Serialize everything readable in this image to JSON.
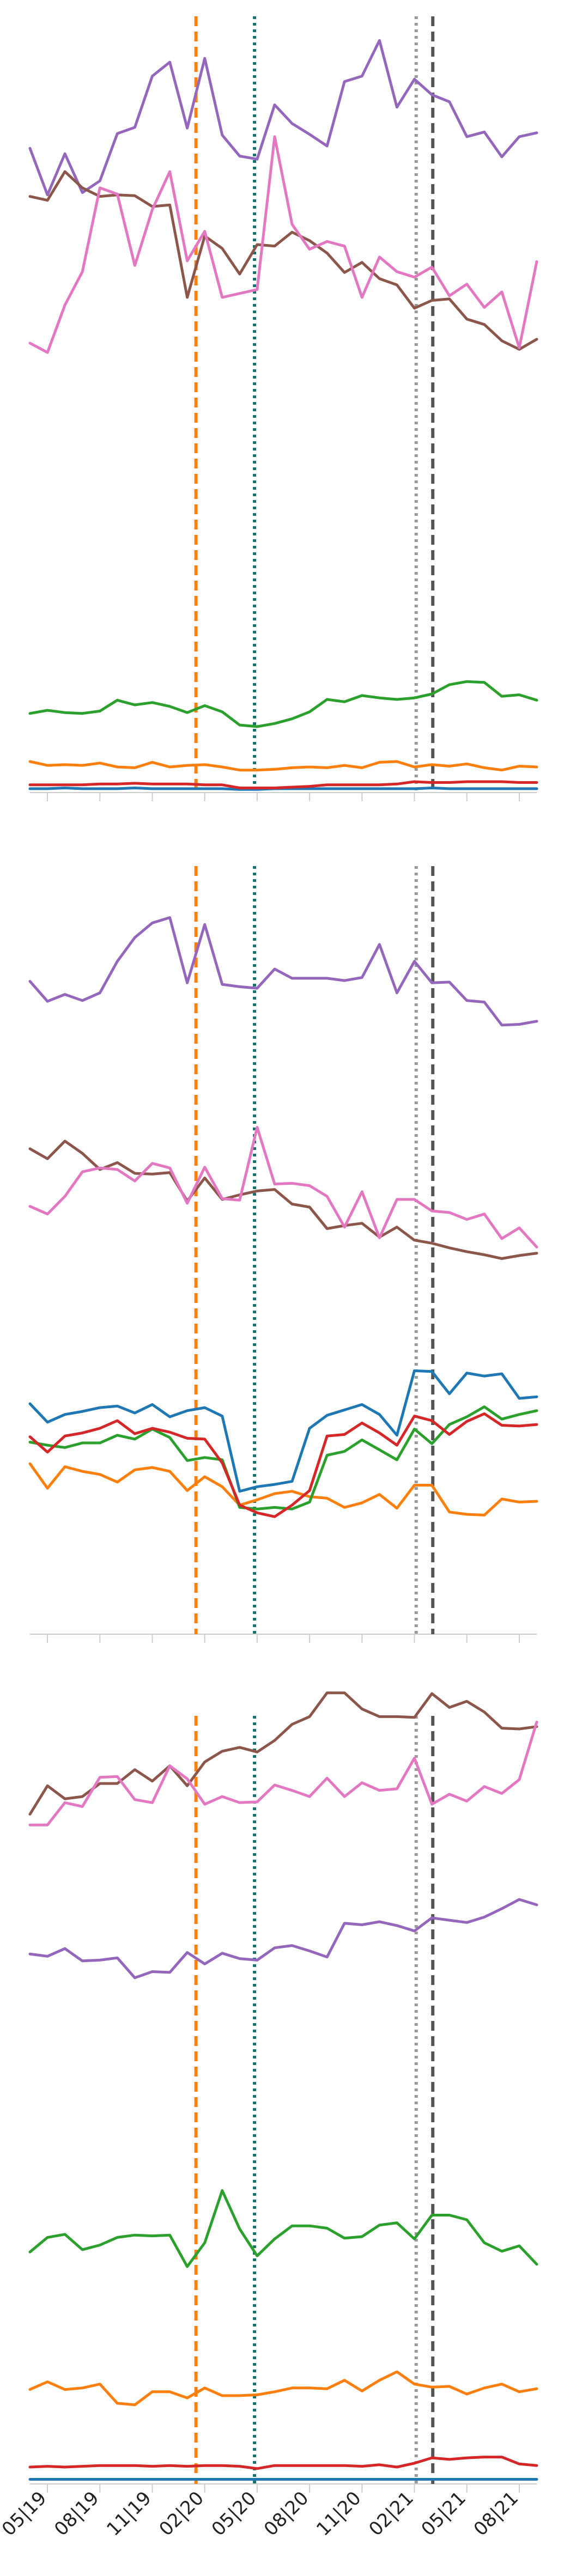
{
  "chart_data": {
    "type": "line",
    "x": [
      "04|19",
      "05|19",
      "06|19",
      "07|19",
      "08|19",
      "09|19",
      "10|19",
      "11|19",
      "12|19",
      "01|20",
      "02|20",
      "03|20",
      "04|20",
      "05|20",
      "06|20",
      "07|20",
      "08|20",
      "09|20",
      "10|20",
      "11|20",
      "12|20",
      "01|21",
      "02|21",
      "03|21",
      "04|21",
      "05|21",
      "06|21",
      "07|21",
      "08|21",
      "09|21"
    ],
    "x_tick_labels": [
      "05|19",
      "08|19",
      "11|19",
      "02|20",
      "05|20",
      "08|20",
      "11|20",
      "02|21",
      "05|21",
      "08|21"
    ],
    "vertical_lines": [
      {
        "x": 9.5,
        "color": "#ff7f0e",
        "style": "dashed"
      },
      {
        "x": 12.85,
        "color": "#17706b",
        "style": "dotted"
      },
      {
        "x": 22.1,
        "color": "#999999",
        "style": "dotted"
      },
      {
        "x": 23.05,
        "color": "#555555",
        "style": "dashed"
      }
    ],
    "panels": [
      {
        "ylim": [
          0,
          100
        ],
        "series": [
          {
            "color": "#1f77b4",
            "values": [
              0.5,
              0.5,
              0.6,
              0.5,
              0.5,
              0.5,
              0.6,
              0.5,
              0.5,
              0.5,
              0.5,
              0.5,
              0.4,
              0.4,
              0.5,
              0.5,
              0.5,
              0.5,
              0.5,
              0.5,
              0.5,
              0.5,
              0.5,
              0.6,
              0.5,
              0.5,
              0.5,
              0.5,
              0.5,
              0.5
            ]
          },
          {
            "color": "#ff7f0e",
            "values": [
              4.0,
              3.5,
              3.6,
              3.5,
              3.8,
              3.3,
              3.2,
              3.9,
              3.3,
              3.5,
              3.6,
              3.3,
              2.9,
              2.9,
              3.0,
              3.2,
              3.3,
              3.2,
              3.5,
              3.2,
              3.9,
              4.0,
              3.3,
              3.6,
              3.4,
              3.7,
              3.2,
              2.9,
              3.4,
              3.3
            ]
          },
          {
            "color": "#2ca02c",
            "values": [
              10.2,
              10.6,
              10.3,
              10.2,
              10.5,
              11.9,
              11.3,
              11.6,
              11.1,
              10.3,
              11.2,
              10.4,
              8.7,
              8.5,
              8.9,
              9.5,
              10.4,
              12.0,
              11.7,
              12.5,
              12.2,
              12.0,
              12.2,
              12.7,
              13.9,
              14.3,
              14.2,
              12.4,
              12.6,
              11.9
            ]
          },
          {
            "color": "#d62728",
            "values": [
              1.0,
              1.0,
              1.0,
              1.0,
              1.1,
              1.1,
              1.2,
              1.1,
              1.1,
              1.1,
              1.0,
              1.0,
              0.6,
              0.6,
              0.6,
              0.7,
              0.8,
              1.0,
              1.0,
              1.0,
              1.0,
              1.1,
              1.4,
              1.3,
              1.3,
              1.4,
              1.4,
              1.4,
              1.3,
              1.3
            ]
          },
          {
            "color": "#9467bd",
            "values": [
              83.0,
              77.0,
              82.3,
              77.3,
              78.8,
              84.9,
              85.7,
              92.3,
              94.1,
              85.6,
              94.6,
              84.7,
              82.0,
              81.6,
              88.6,
              86.2,
              84.8,
              83.3,
              91.6,
              92.3,
              96.9,
              88.3,
              91.9,
              89.9,
              89.0,
              84.5,
              85.1,
              81.9,
              84.5,
              85.0
            ]
          },
          {
            "color": "#8c564b",
            "values": [
              76.8,
              76.3,
              80.0,
              77.9,
              76.8,
              77.0,
              76.9,
              75.5,
              75.7,
              63.8,
              71.7,
              70.1,
              66.8,
              70.6,
              70.4,
              72.2,
              71.1,
              69.5,
              67.0,
              68.3,
              66.2,
              65.4,
              62.4,
              63.4,
              63.6,
              61.0,
              60.3,
              58.2,
              57.1,
              58.4
            ]
          },
          {
            "color": "#e377c2",
            "values": [
              57.9,
              56.7,
              62.8,
              67.1,
              77.9,
              77.1,
              67.9,
              75.1,
              80.0,
              68.5,
              72.3,
              63.8,
              64.3,
              64.8,
              84.5,
              73.2,
              70.0,
              71.0,
              70.4,
              63.8,
              69.0,
              67.1,
              66.4,
              67.7,
              64.0,
              65.5,
              62.5,
              64.5,
              57.3,
              68.4
            ]
          }
        ]
      },
      {
        "ylim": [
          0,
          100
        ],
        "series": [
          {
            "color": "#1f77b4",
            "values": [
              30.0,
              27.6,
              28.6,
              29.0,
              29.5,
              29.7,
              28.8,
              29.9,
              28.3,
              29.1,
              29.5,
              28.4,
              18.6,
              19.2,
              19.5,
              19.9,
              26.8,
              28.5,
              29.2,
              29.9,
              28.6,
              25.9,
              34.3,
              34.2,
              31.3,
              34.0,
              33.6,
              33.9,
              30.7,
              30.9
            ]
          },
          {
            "color": "#ff7f0e",
            "values": [
              22.2,
              19.0,
              21.8,
              21.2,
              20.8,
              19.8,
              21.4,
              21.7,
              21.2,
              18.7,
              20.5,
              19.2,
              16.8,
              17.5,
              18.3,
              18.6,
              17.9,
              17.7,
              16.5,
              17.1,
              18.2,
              16.4,
              19.4,
              19.4,
              15.9,
              15.6,
              15.5,
              17.6,
              17.2,
              17.3
            ]
          },
          {
            "color": "#2ca02c",
            "values": [
              25.0,
              24.6,
              24.3,
              24.9,
              24.9,
              25.9,
              25.4,
              26.7,
              25.6,
              22.6,
              23.0,
              22.7,
              16.5,
              16.3,
              16.5,
              16.3,
              17.2,
              23.3,
              23.8,
              25.3,
              24.0,
              22.7,
              26.7,
              24.8,
              27.3,
              28.3,
              29.6,
              28.0,
              28.6,
              29.1
            ]
          },
          {
            "color": "#d62728",
            "values": [
              25.7,
              23.7,
              25.8,
              26.2,
              26.8,
              27.8,
              26.1,
              26.8,
              26.3,
              25.5,
              25.4,
              22.3,
              16.8,
              15.8,
              15.3,
              16.8,
              18.7,
              25.8,
              26.0,
              27.5,
              26.2,
              24.6,
              28.4,
              27.8,
              26.0,
              27.7,
              28.7,
              27.2,
              27.1,
              27.3
            ]
          },
          {
            "color": "#9467bd",
            "values": [
              85.0,
              82.4,
              83.3,
              82.5,
              83.5,
              87.6,
              90.7,
              92.6,
              93.3,
              84.8,
              92.4,
              84.6,
              84.3,
              84.1,
              86.6,
              85.4,
              85.4,
              85.4,
              85.1,
              85.5,
              89.8,
              83.5,
              87.6,
              84.8,
              84.9,
              82.5,
              82.3,
              79.3,
              79.4,
              79.8
            ]
          },
          {
            "color": "#8c564b",
            "values": [
              63.2,
              61.9,
              64.2,
              62.6,
              60.5,
              61.4,
              60.0,
              59.9,
              60.1,
              56.4,
              59.4,
              56.6,
              57.2,
              57.7,
              57.9,
              56.0,
              55.6,
              52.8,
              53.2,
              53.5,
              51.7,
              53.0,
              51.3,
              50.9,
              50.3,
              49.8,
              49.4,
              48.9,
              49.3,
              49.6
            ]
          },
          {
            "color": "#e377c2",
            "values": [
              55.7,
              54.7,
              57.0,
              60.2,
              60.7,
              60.5,
              59.0,
              61.3,
              60.7,
              56.1,
              60.8,
              56.7,
              56.5,
              66.0,
              58.6,
              58.7,
              58.4,
              57.0,
              53.0,
              57.6,
              51.6,
              56.6,
              56.6,
              55.1,
              54.9,
              54.0,
              54.7,
              51.5,
              52.9,
              50.4
            ]
          }
        ]
      },
      {
        "ylim": [
          0,
          100
        ],
        "series": [
          {
            "color": "#1f77b4",
            "values": [
              0.6,
              0.6,
              0.6,
              0.6,
              0.6,
              0.6,
              0.6,
              0.6,
              0.6,
              0.6,
              0.6,
              0.6,
              0.6,
              0.6,
              0.6,
              0.6,
              0.6,
              0.6,
              0.6,
              0.6,
              0.6,
              0.6,
              0.6,
              0.6,
              0.6,
              0.6,
              0.6,
              0.6,
              0.6,
              0.6
            ]
          },
          {
            "color": "#ff7f0e",
            "values": [
              12.3,
              13.3,
              12.3,
              12.5,
              13.0,
              10.5,
              10.3,
              12.0,
              12.0,
              11.2,
              12.5,
              11.5,
              11.5,
              11.6,
              12.0,
              12.5,
              12.5,
              12.4,
              13.5,
              12.1,
              13.5,
              14.6,
              13.0,
              12.6,
              12.7,
              11.7,
              12.5,
              13.0,
              12.0,
              12.4
            ]
          },
          {
            "color": "#2ca02c",
            "values": [
              30.2,
              32.1,
              32.5,
              30.5,
              31.1,
              32.1,
              32.4,
              32.3,
              32.4,
              28.3,
              31.4,
              38.2,
              33.2,
              29.7,
              31.9,
              33.6,
              33.6,
              33.3,
              32.0,
              32.2,
              33.7,
              34.0,
              31.9,
              35.0,
              35.0,
              34.4,
              31.4,
              30.3,
              31.0,
              28.6
            ]
          },
          {
            "color": "#d62728",
            "values": [
              2.2,
              2.3,
              2.2,
              2.3,
              2.4,
              2.4,
              2.4,
              2.3,
              2.4,
              2.3,
              2.4,
              2.4,
              2.3,
              2.0,
              2.4,
              2.4,
              2.4,
              2.4,
              2.4,
              2.3,
              2.5,
              2.2,
              2.7,
              3.4,
              3.2,
              3.4,
              3.5,
              3.5,
              2.6,
              2.4
            ]
          },
          {
            "color": "#9467bd",
            "values": [
              69.0,
              68.7,
              69.7,
              68.1,
              68.2,
              68.5,
              65.9,
              66.7,
              66.6,
              69.2,
              67.7,
              69.1,
              68.4,
              68.2,
              69.8,
              70.1,
              69.4,
              68.6,
              73.0,
              72.8,
              73.2,
              72.7,
              72.0,
              73.7,
              73.4,
              73.1,
              73.8,
              74.9,
              76.1,
              75.4
            ]
          },
          {
            "color": "#8c564b",
            "values": [
              87.2,
              90.9,
              89.2,
              89.5,
              91.2,
              91.2,
              93.0,
              91.5,
              93.5,
              90.9,
              94.0,
              95.4,
              95.9,
              95.3,
              96.8,
              98.9,
              99.9,
              103.0,
              103.0,
              100.9,
              99.9,
              99.9,
              99.8,
              102.9,
              101.1,
              101.9,
              100.5,
              98.4,
              98.3,
              98.6
            ]
          },
          {
            "color": "#e377c2",
            "values": [
              85.8,
              85.8,
              88.7,
              88.2,
              92.0,
              92.1,
              89.1,
              88.7,
              93.5,
              91.8,
              88.5,
              89.5,
              88.7,
              88.8,
              91.0,
              90.3,
              89.5,
              91.9,
              89.5,
              91.3,
              90.3,
              90.5,
              94.5,
              88.5,
              89.8,
              88.9,
              90.8,
              89.9,
              91.7,
              99.2
            ]
          }
        ]
      }
    ]
  }
}
